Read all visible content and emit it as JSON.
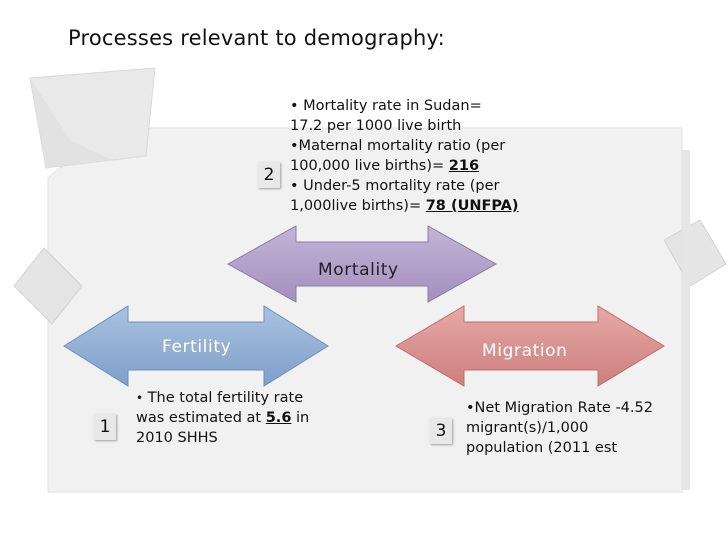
{
  "title": "Processes relevant to demography:",
  "mortality": {
    "number": "2",
    "label": "Mortality",
    "lines": [
      "• Mortality rate in Sudan=",
      "17.2 per 1000 live birth",
      "•Maternal mortality ratio (per",
      "100,000 live births)= ",
      "216",
      "• Under-5 mortality rate (per",
      "1,000live births)= ",
      "78 (UNFPA)"
    ]
  },
  "fertility": {
    "number": "1",
    "label": "Fertility",
    "bullet": "•",
    "line1": " The total fertility rate",
    "line2": "was estimated at ",
    "value": "5.6",
    "line2_end": " in",
    "line3": "2010 SHHS"
  },
  "migration": {
    "number": "3",
    "label": "Migration",
    "lines": [
      "•Net Migration Rate -4.52",
      "migrant(s)/1,000",
      "population (2011 est"
    ]
  },
  "colors": {
    "fertility": "#95b3d7",
    "mortality": "#b3a2c7",
    "migration": "#d99694",
    "panel": "#f2f2f2"
  }
}
